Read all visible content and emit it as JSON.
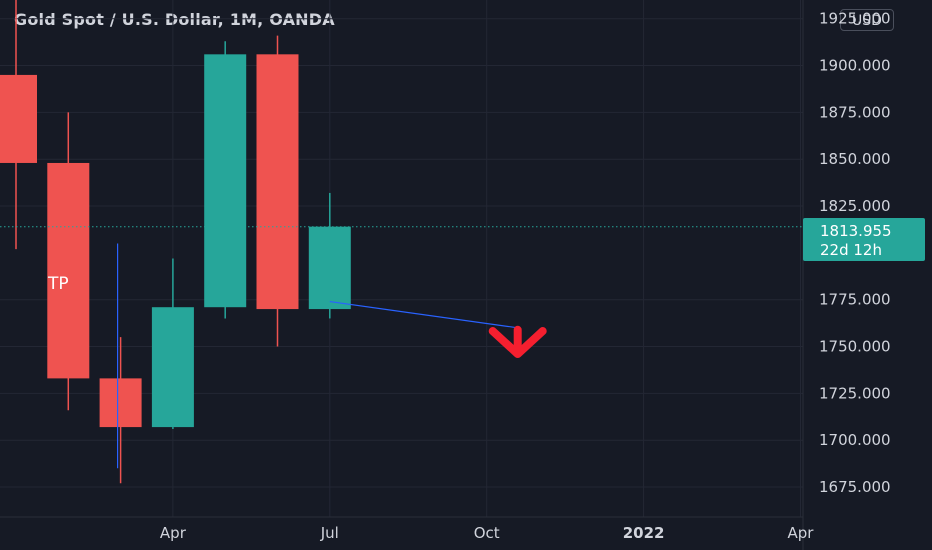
{
  "header": {
    "title": "Gold Spot / U.S. Dollar, 1M, OANDA"
  },
  "currency_button": {
    "label": "USD"
  },
  "price_badge": {
    "price": "1813.955",
    "countdown": "22d 12h",
    "color": "#26a69a"
  },
  "annotation": {
    "tp_label": "TP",
    "arrow_color": "#f51f2f",
    "trend_line_color": "#2962ff"
  },
  "colors": {
    "background": "#161a25",
    "up": "#26a69a",
    "down": "#ef5350",
    "grid": "#232734",
    "text": "#d1d4dc"
  },
  "chart_data": {
    "type": "candlestick",
    "title": "Gold Spot / U.S. Dollar, 1M, OANDA",
    "ylim": [
      1659,
      1935
    ],
    "y_ticks": [
      {
        "value": 1925,
        "label": "1925.000"
      },
      {
        "value": 1900,
        "label": "1900.000"
      },
      {
        "value": 1875,
        "label": "1875.000"
      },
      {
        "value": 1850,
        "label": "1850.000"
      },
      {
        "value": 1825,
        "label": "1825.000"
      },
      {
        "value": 1775,
        "label": "1775.000"
      },
      {
        "value": 1750,
        "label": "1750.000"
      },
      {
        "value": 1725,
        "label": "1725.000"
      },
      {
        "value": 1700,
        "label": "1700.000"
      },
      {
        "value": 1675,
        "label": "1675.000"
      }
    ],
    "x_ticks": [
      "Apr",
      "Jul",
      "Oct",
      "2022",
      "Apr"
    ],
    "candles": [
      {
        "month": "2021-01",
        "open": 1895,
        "high": 1960,
        "low": 1802,
        "close": 1848
      },
      {
        "month": "2021-02",
        "open": 1848,
        "high": 1875,
        "low": 1716,
        "close": 1733
      },
      {
        "month": "2021-03",
        "open": 1733,
        "high": 1755,
        "low": 1677,
        "close": 1707
      },
      {
        "month": "2021-04",
        "open": 1707,
        "high": 1797,
        "low": 1706,
        "close": 1771
      },
      {
        "month": "2021-05",
        "open": 1771,
        "high": 1913,
        "low": 1765,
        "close": 1906
      },
      {
        "month": "2021-06",
        "open": 1906,
        "high": 1916,
        "low": 1750,
        "close": 1770
      },
      {
        "month": "2021-07",
        "open": 1770,
        "high": 1832,
        "low": 1765,
        "close": 1814
      }
    ],
    "last_price": 1813.955,
    "trend_line": [
      {
        "month": "2021-07",
        "price": 1774
      },
      {
        "month": "2021-10",
        "price": 1760
      }
    ]
  }
}
